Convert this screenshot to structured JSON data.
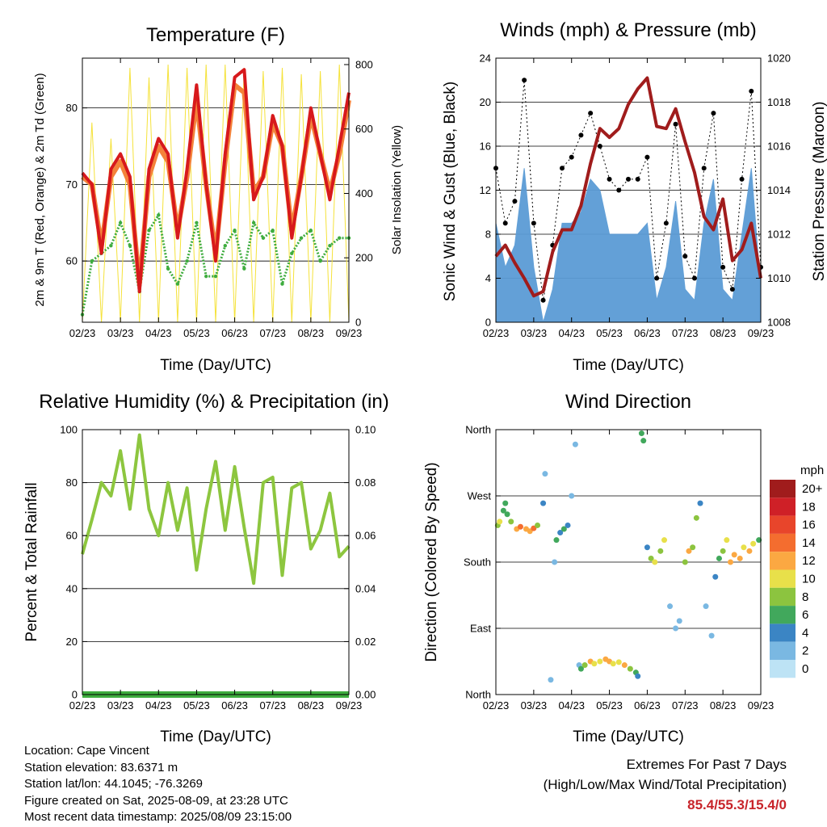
{
  "colors": {
    "t2m": "#d7191c",
    "t9m": "#f4823a",
    "td": "#3eac3e",
    "solar": "#f5e23a",
    "wind": "#5b9bd5",
    "gust": "#000000",
    "pressure": "#a01c1c",
    "rh": "#8dc63f",
    "precip": "#3eac3e"
  },
  "time_ticks": [
    "02/23",
    "03/23",
    "04/23",
    "05/23",
    "06/23",
    "07/23",
    "08/23",
    "09/23"
  ],
  "charts": [
    {
      "id": "temperature",
      "title": "Temperature (F)",
      "xlabel": "Time (Day/UTC)",
      "ylabel_left": "2m & 9m T (Red, Orange) & 2m Td (Green)",
      "ylabel_right": "Solar Insolation (Yellow)",
      "left_ticks": [
        "60",
        "70",
        "80"
      ],
      "right_ticks": [
        "0",
        "200",
        "400",
        "600",
        "800"
      ]
    },
    {
      "id": "winds",
      "title": "Winds (mph) & Pressure (mb)",
      "xlabel": "Time (Day/UTC)",
      "ylabel_left": "Sonic Wind & Gust (Blue, Black)",
      "ylabel_right": "Station Pressure (Maroon)",
      "left_ticks": [
        "0",
        "4",
        "8",
        "12",
        "16",
        "20",
        "24"
      ],
      "right_ticks": [
        "1008",
        "1010",
        "1012",
        "1014",
        "1016",
        "1018",
        "1020"
      ]
    },
    {
      "id": "humidity",
      "title": "Relative Humidity (%) & Precipitation (in)",
      "xlabel": "Time (Day/UTC)",
      "ylabel_left": "Percent & Total Rainfall",
      "left_ticks": [
        "0",
        "20",
        "40",
        "60",
        "80",
        "100"
      ],
      "right_ticks": [
        "0.00",
        "0.02",
        "0.04",
        "0.06",
        "0.08",
        "0.10"
      ]
    },
    {
      "id": "direction",
      "title": "Wind Direction",
      "xlabel": "Time (Day/UTC)",
      "ylabel_left": "Direction (Colored By Speed)",
      "left_ticks": [
        "North",
        "East",
        "South",
        "West",
        "North"
      ],
      "legend_title": "mph",
      "legend": [
        {
          "label": "20+",
          "color": "#a01c1c"
        },
        {
          "label": "18",
          "color": "#cf2027"
        },
        {
          "label": "16",
          "color": "#e8452b"
        },
        {
          "label": "14",
          "color": "#f46d2f"
        },
        {
          "label": "12",
          "color": "#fba842"
        },
        {
          "label": "10",
          "color": "#e8e04a"
        },
        {
          "label": "8",
          "color": "#8cc43f"
        },
        {
          "label": "6",
          "color": "#41a85c"
        },
        {
          "label": "4",
          "color": "#3b85c4"
        },
        {
          "label": "2",
          "color": "#7ab8e2"
        },
        {
          "label": "0",
          "color": "#bde3f5"
        }
      ]
    }
  ],
  "info": {
    "location": "Location: Cape Vincent",
    "elevation": "Station elevation: 83.6371 m",
    "latlon": "Station lat/lon: 44.1045; -76.3269",
    "created": "Figure created on Sat, 2025-08-09, at 23:28 UTC",
    "recent": "Most recent data timestamp: 2025/08/09 23:15:00"
  },
  "extremes": {
    "title": "Extremes For Past 7 Days",
    "subtitle": "(High/Low/Max Wind/Total Precipitation)",
    "values": "85.4/55.3/15.4/0"
  },
  "chart_data": [
    {
      "type": "line",
      "x": [
        0,
        0.25,
        0.5,
        0.75,
        1,
        1.25,
        1.5,
        1.75,
        2,
        2.25,
        2.5,
        2.75,
        3,
        3.25,
        3.5,
        3.75,
        4,
        4.25,
        4.5,
        4.75,
        5,
        5.25,
        5.5,
        5.75,
        6,
        6.25,
        6.5,
        6.75,
        7
      ],
      "xlim": [
        0,
        7
      ],
      "ylim": [
        52,
        86.5
      ],
      "y2lim": [
        0,
        820
      ],
      "series": [
        {
          "name": "2m T",
          "values": [
            71.5,
            70,
            61,
            72,
            74,
            71,
            56,
            72,
            76,
            74,
            63,
            72,
            83,
            70,
            60,
            74,
            84,
            85,
            68,
            71,
            79,
            75,
            63,
            71,
            80,
            74,
            68,
            75,
            82
          ]
        },
        {
          "name": "9m T",
          "values": [
            71,
            70,
            62,
            71,
            73,
            70,
            57,
            71,
            75,
            73,
            64,
            71,
            81,
            70,
            61,
            73,
            83,
            82,
            69,
            71,
            78,
            75,
            64,
            71,
            79,
            74,
            69,
            74,
            81
          ]
        },
        {
          "name": "2m Td",
          "values": [
            53,
            60,
            61,
            62,
            65,
            62,
            56,
            64,
            66,
            59,
            57,
            60,
            65,
            58,
            58,
            62,
            64,
            59,
            65,
            63,
            64,
            57,
            61,
            63,
            64,
            60,
            62,
            63,
            63
          ]
        },
        {
          "name": "Solar Insolation",
          "axis": "y2",
          "values": [
            0,
            620,
            0,
            570,
            0,
            790,
            0,
            760,
            0,
            800,
            0,
            790,
            0,
            800,
            0,
            800,
            0,
            790,
            0,
            780,
            0,
            790,
            0,
            770,
            0,
            780,
            0,
            800,
            0
          ]
        }
      ]
    },
    {
      "type": "line",
      "x": [
        0,
        0.25,
        0.5,
        0.75,
        1,
        1.25,
        1.5,
        1.75,
        2,
        2.25,
        2.5,
        2.75,
        3,
        3.25,
        3.5,
        3.75,
        4,
        4.25,
        4.5,
        4.75,
        5,
        5.25,
        5.5,
        5.75,
        6,
        6.25,
        6.5,
        6.75,
        7
      ],
      "xlim": [
        0,
        7
      ],
      "ylim": [
        0,
        24
      ],
      "y2lim": [
        1008,
        1020
      ],
      "series": [
        {
          "name": "Sonic Wind",
          "values": [
            9,
            5,
            7,
            14,
            5,
            0,
            3,
            9,
            9,
            10,
            13,
            12,
            8,
            8,
            8,
            8,
            9,
            2,
            5,
            11,
            3,
            2,
            9,
            13,
            3,
            2,
            8,
            14,
            3
          ]
        },
        {
          "name": "Gust",
          "values": [
            14,
            9,
            11,
            22,
            9,
            2,
            7,
            14,
            15,
            17,
            19,
            16,
            13,
            12,
            13,
            13,
            15,
            4,
            9,
            18,
            6,
            4,
            14,
            19,
            5,
            3,
            13,
            21,
            5
          ]
        },
        {
          "name": "Station Pressure",
          "axis": "y2",
          "values": [
            1011,
            1011.5,
            1010.7,
            1010,
            1009.2,
            1009.4,
            1011.2,
            1012.2,
            1012.2,
            1013.3,
            1015.2,
            1016.8,
            1016.4,
            1016.8,
            1017.9,
            1018.6,
            1019.1,
            1016.9,
            1016.8,
            1017.7,
            1016.2,
            1014.8,
            1012.8,
            1012.2,
            1013.6,
            1010.8,
            1011.3,
            1012.5,
            1010
          ]
        }
      ]
    },
    {
      "type": "line",
      "x": [
        0,
        0.25,
        0.5,
        0.75,
        1,
        1.25,
        1.5,
        1.75,
        2,
        2.25,
        2.5,
        2.75,
        3,
        3.25,
        3.5,
        3.75,
        4,
        4.25,
        4.5,
        4.75,
        5,
        5.25,
        5.5,
        5.75,
        6,
        6.25,
        6.5,
        6.75,
        7
      ],
      "xlim": [
        0,
        7
      ],
      "ylim": [
        0,
        100
      ],
      "y2lim": [
        0,
        0.1
      ],
      "series": [
        {
          "name": "Relative Humidity",
          "values": [
            53,
            66,
            80,
            75,
            92,
            70,
            98,
            70,
            60,
            80,
            62,
            78,
            47,
            70,
            88,
            62,
            86,
            63,
            42,
            80,
            82,
            45,
            78,
            80,
            55,
            62,
            76,
            52,
            56
          ]
        },
        {
          "name": "Total Precipitation",
          "axis": "y2",
          "values": [
            0,
            0,
            0,
            0,
            0,
            0,
            0,
            0,
            0,
            0,
            0,
            0,
            0,
            0,
            0,
            0,
            0,
            0,
            0,
            0,
            0,
            0,
            0,
            0,
            0,
            0,
            0,
            0,
            0
          ]
        }
      ]
    },
    {
      "type": "scatter",
      "xlim": [
        0,
        7
      ],
      "ylim": [
        0,
        360
      ],
      "y_ticks": [
        0,
        90,
        180,
        270,
        360
      ],
      "points": [
        [
          0.05,
          230,
          8
        ],
        [
          0.1,
          235,
          10
        ],
        [
          0.2,
          250,
          6
        ],
        [
          0.25,
          260,
          6
        ],
        [
          0.3,
          245,
          7
        ],
        [
          0.4,
          235,
          9
        ],
        [
          0.55,
          225,
          13
        ],
        [
          0.65,
          228,
          14
        ],
        [
          0.8,
          225,
          12
        ],
        [
          0.9,
          222,
          13
        ],
        [
          1.0,
          226,
          14
        ],
        [
          1.1,
          230,
          8
        ],
        [
          1.25,
          260,
          4
        ],
        [
          1.3,
          300,
          3
        ],
        [
          1.45,
          20,
          2
        ],
        [
          1.55,
          180,
          3
        ],
        [
          1.6,
          210,
          7
        ],
        [
          1.7,
          220,
          5
        ],
        [
          1.8,
          225,
          6
        ],
        [
          1.9,
          230,
          5
        ],
        [
          2.0,
          270,
          3
        ],
        [
          2.1,
          340,
          2
        ],
        [
          2.2,
          40,
          2
        ],
        [
          2.25,
          35,
          6
        ],
        [
          2.35,
          40,
          8
        ],
        [
          2.5,
          45,
          12
        ],
        [
          2.6,
          42,
          10
        ],
        [
          2.75,
          45,
          11
        ],
        [
          2.9,
          48,
          12
        ],
        [
          3.0,
          45,
          12
        ],
        [
          3.1,
          42,
          10
        ],
        [
          3.25,
          44,
          11
        ],
        [
          3.4,
          40,
          12
        ],
        [
          3.55,
          35,
          8
        ],
        [
          3.7,
          30,
          6
        ],
        [
          3.75,
          25,
          5
        ],
        [
          3.85,
          355,
          6
        ],
        [
          3.9,
          345,
          6
        ],
        [
          4.0,
          200,
          4
        ],
        [
          4.1,
          185,
          8
        ],
        [
          4.2,
          180,
          10
        ],
        [
          4.35,
          195,
          9
        ],
        [
          4.45,
          210,
          10
        ],
        [
          4.6,
          120,
          2
        ],
        [
          4.75,
          90,
          3
        ],
        [
          4.85,
          100,
          3
        ],
        [
          5.0,
          180,
          8
        ],
        [
          5.1,
          195,
          12
        ],
        [
          5.2,
          200,
          9
        ],
        [
          5.3,
          240,
          8
        ],
        [
          5.4,
          260,
          5
        ],
        [
          5.55,
          120,
          2
        ],
        [
          5.7,
          80,
          3
        ],
        [
          5.8,
          160,
          5
        ],
        [
          5.9,
          185,
          6
        ],
        [
          6.0,
          195,
          9
        ],
        [
          6.1,
          210,
          10
        ],
        [
          6.2,
          180,
          12
        ],
        [
          6.3,
          190,
          12
        ],
        [
          6.45,
          185,
          12
        ],
        [
          6.55,
          200,
          10
        ],
        [
          6.7,
          195,
          12
        ],
        [
          6.8,
          205,
          11
        ],
        [
          6.95,
          210,
          7
        ]
      ]
    }
  ]
}
